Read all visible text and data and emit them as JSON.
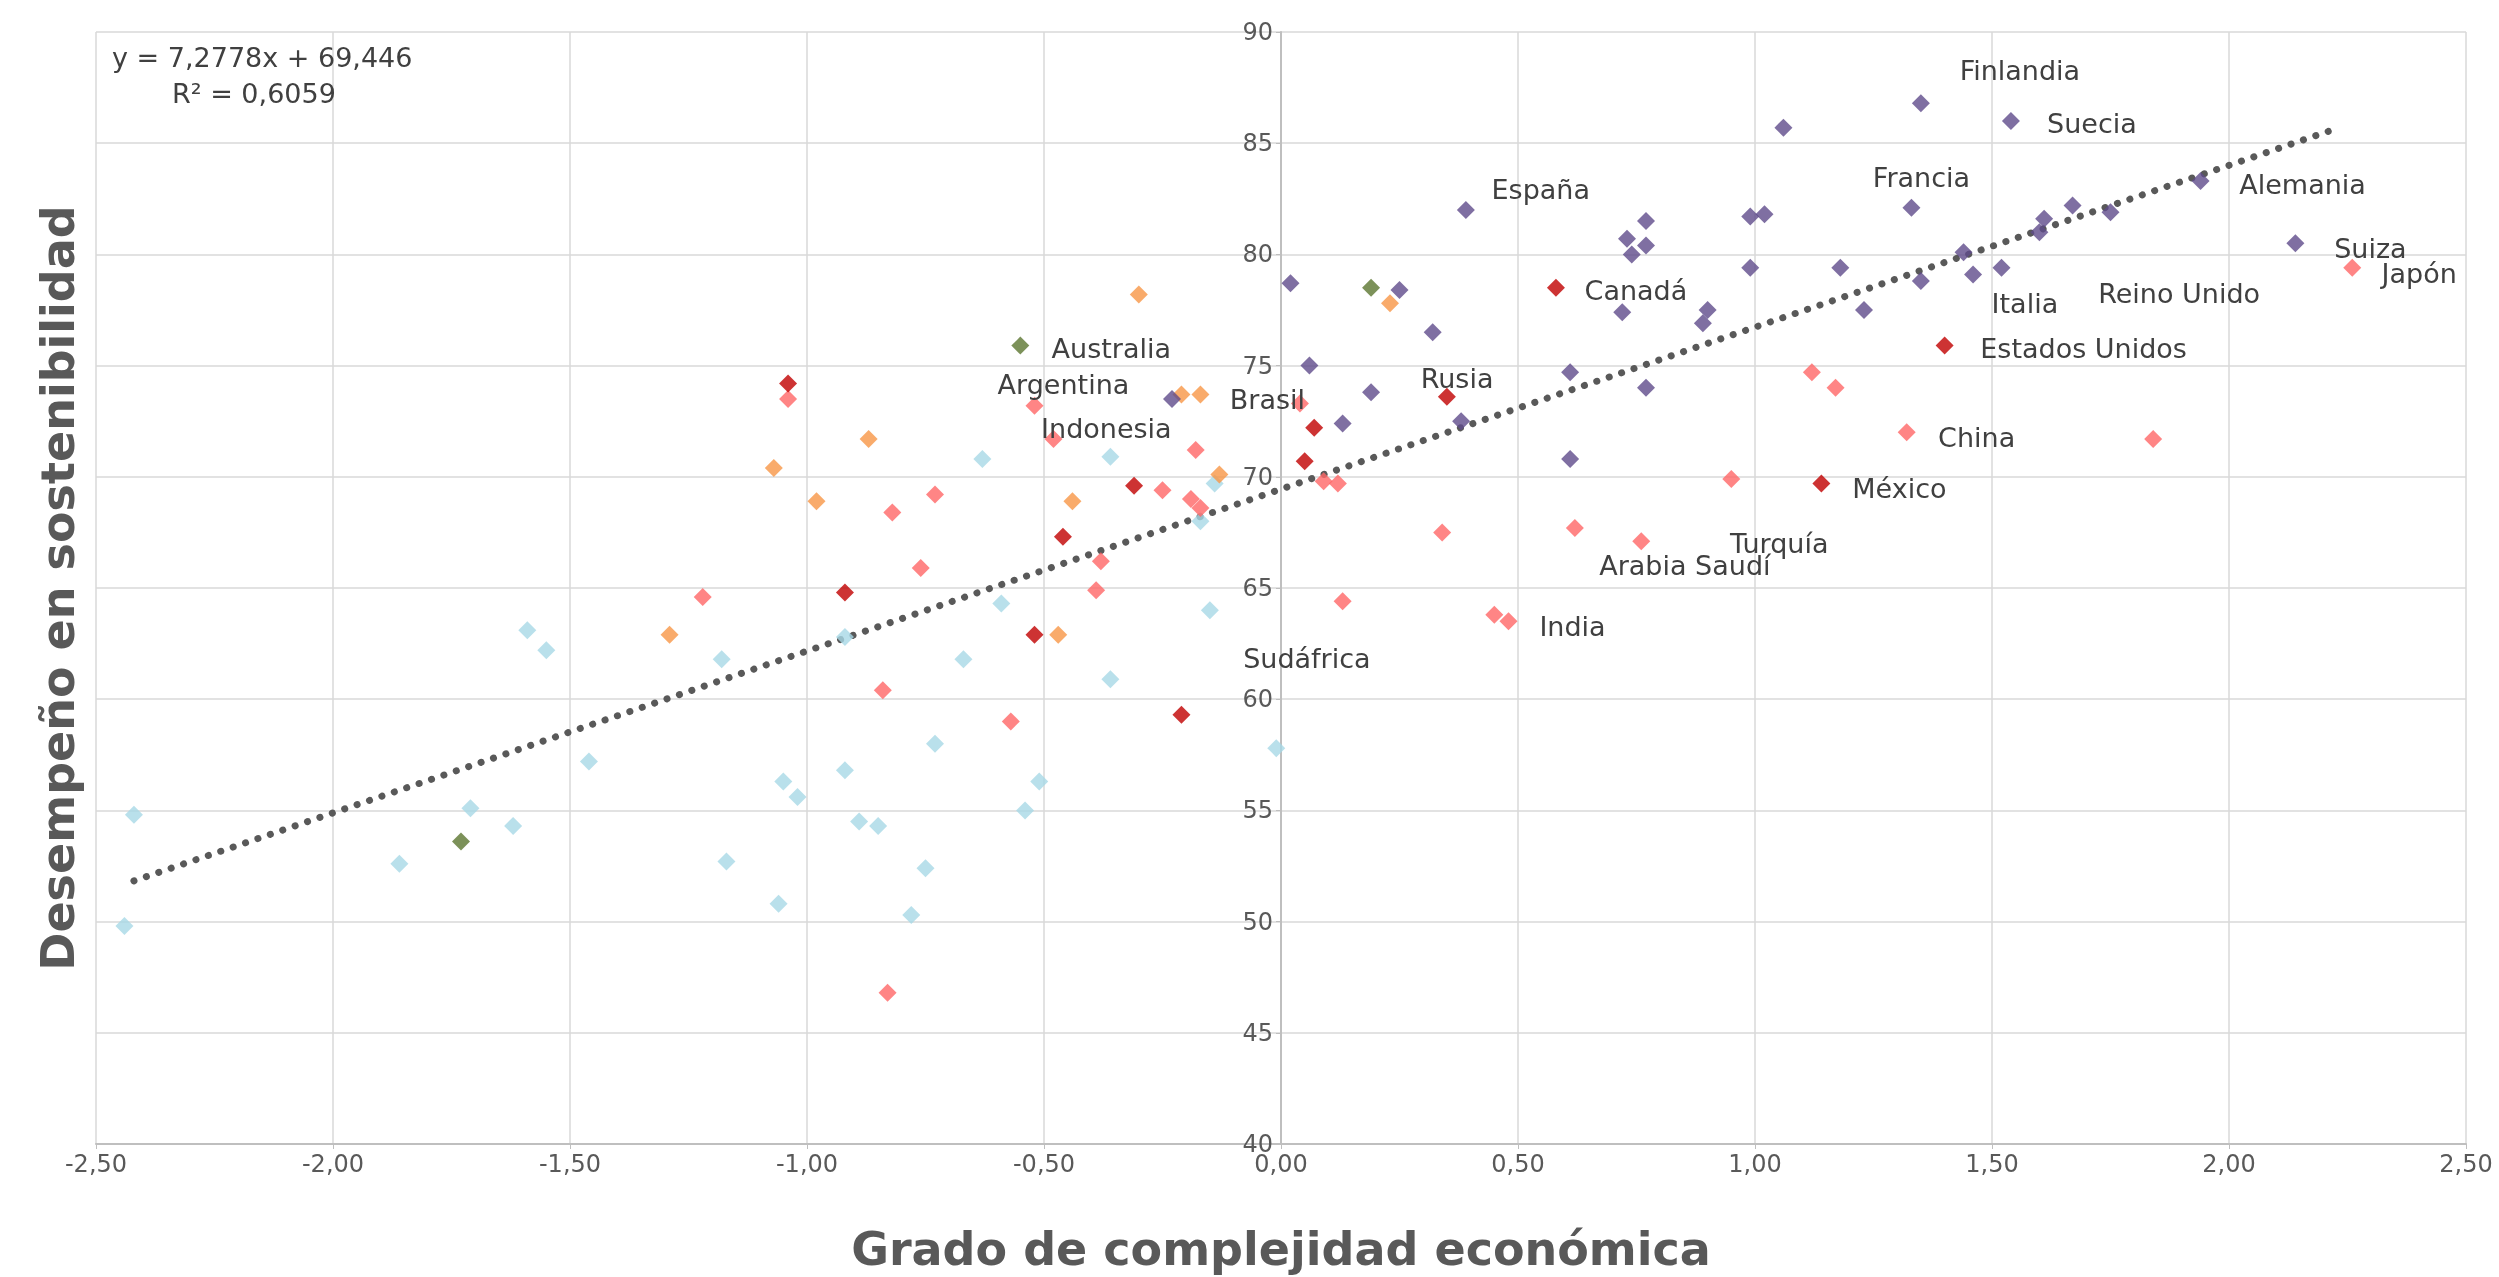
{
  "chart_data": {
    "type": "scatter",
    "xlabel": "Grado de complejidad económica",
    "ylabel": "Desempeño en sostenibilidad",
    "xlim": [
      -2.5,
      2.5
    ],
    "ylim": [
      40,
      90
    ],
    "xticks": [
      {
        "value": -2.5,
        "label": "-2,50"
      },
      {
        "value": -2,
        "label": "-2,00"
      },
      {
        "value": -1.5,
        "label": "-1,50"
      },
      {
        "value": -1,
        "label": "-1,00"
      },
      {
        "value": -0.5,
        "label": "-0,50"
      },
      {
        "value": 0,
        "label": "0,00"
      },
      {
        "value": 0.5,
        "label": "0,50"
      },
      {
        "value": 1,
        "label": "1,00"
      },
      {
        "value": 1.5,
        "label": "1,50"
      },
      {
        "value": 2,
        "label": "2,00"
      },
      {
        "value": 2.5,
        "label": "2,50"
      }
    ],
    "yticks": [
      40,
      45,
      50,
      55,
      60,
      65,
      70,
      75,
      80,
      85,
      90
    ],
    "grid": true,
    "marker": "diamond",
    "series": [
      {
        "color": "#a8d8e6",
        "x": [
          -2.42,
          -2.44,
          -1.86,
          -1.71,
          -1.62,
          -1.59,
          -1.55,
          -1.46,
          -1.18,
          -1.17,
          -1.06,
          -1.05,
          -1.02,
          -0.92,
          -0.92,
          -0.89,
          -0.85,
          -0.78,
          -0.75,
          -0.73,
          -0.67,
          -0.63,
          -0.59,
          -0.54,
          -0.51,
          -0.36,
          -0.36,
          -0.17,
          -0.15,
          -0.14,
          -0.01
        ],
        "values": [
          54.8,
          49.8,
          52.6,
          55.1,
          54.3,
          63.1,
          62.2,
          57.2,
          61.8,
          52.7,
          50.8,
          56.3,
          55.6,
          62.8,
          56.8,
          54.5,
          54.3,
          50.3,
          52.4,
          58.0,
          61.8,
          70.8,
          64.3,
          55.0,
          56.3,
          70.9,
          60.9,
          68.0,
          64.0,
          69.7,
          57.8
        ]
      },
      {
        "color": "#ff6666",
        "x": [
          -0.83,
          -0.84,
          -1.04,
          -1.22,
          -0.82,
          -0.73,
          -0.76,
          -0.57,
          -0.52,
          -0.48,
          -0.39,
          -0.38,
          -0.25,
          -0.19,
          -0.18,
          -0.17,
          0.04,
          0.09,
          0.12,
          0.13,
          0.34,
          0.45,
          0.48,
          0.62,
          0.76,
          0.95,
          1.12,
          1.17,
          1.32,
          1.84,
          2.26
        ],
        "values": [
          46.8,
          60.4,
          73.5,
          64.6,
          68.4,
          69.2,
          65.9,
          59.0,
          73.2,
          71.7,
          64.9,
          66.2,
          69.4,
          69.0,
          71.2,
          68.6,
          73.3,
          69.8,
          69.7,
          64.4,
          67.5,
          63.8,
          63.5,
          67.7,
          67.1,
          69.9,
          74.7,
          74.0,
          72.0,
          71.7,
          79.4
        ]
      },
      {
        "color": "#c00000",
        "x": [
          -1.04,
          -0.92,
          -0.52,
          -0.46,
          -0.31,
          -0.21,
          0.05,
          0.07,
          0.35,
          0.58,
          1.14,
          1.4
        ],
        "values": [
          74.2,
          64.8,
          62.9,
          67.3,
          69.6,
          59.3,
          70.7,
          72.2,
          73.6,
          78.5,
          69.7,
          75.9
        ]
      },
      {
        "color": "#f79646",
        "x": [
          -0.3,
          0.23,
          -1.07,
          -0.98,
          -0.87,
          -1.29,
          -0.47,
          -0.44,
          -0.21,
          -0.17,
          -0.13
        ],
        "values": [
          78.2,
          77.8,
          70.4,
          68.9,
          71.7,
          62.9,
          62.9,
          68.9,
          73.7,
          73.7,
          70.1
        ]
      },
      {
        "color": "#5b7530",
        "x": [
          -0.55,
          0.19,
          -1.73
        ],
        "values": [
          75.9,
          78.5,
          53.6
        ]
      },
      {
        "color": "#5f4b8b",
        "x": [
          0.02,
          0.06,
          -0.23,
          0.13,
          0.19,
          0.25,
          0.32,
          0.38,
          0.39,
          0.61,
          0.61,
          0.72,
          0.73,
          0.74,
          0.77,
          0.77,
          0.77,
          0.89,
          0.9,
          0.99,
          0.99,
          1.02,
          1.06,
          1.18,
          1.23,
          1.33,
          1.35,
          1.35,
          1.44,
          1.46,
          1.52,
          1.54,
          1.6,
          1.61,
          1.67,
          1.75,
          1.94,
          2.14
        ],
        "values": [
          78.7,
          75.0,
          73.5,
          72.4,
          73.8,
          78.4,
          76.5,
          72.5,
          82.0,
          74.7,
          70.8,
          77.4,
          80.7,
          80.0,
          80.4,
          81.5,
          74.0,
          76.9,
          77.5,
          81.7,
          79.4,
          81.8,
          85.7,
          79.4,
          77.5,
          82.1,
          86.8,
          78.8,
          80.1,
          79.1,
          79.4,
          86.0,
          81.0,
          81.6,
          82.2,
          81.9,
          83.3,
          80.5
        ]
      },
      {
        "type": "line",
        "color": "#595959",
        "line_style": "dotted",
        "marker": "none",
        "x": [
          -2.42,
          2.23
        ],
        "values": [
          51.83,
          85.68
        ]
      }
    ],
    "annotations": [
      "y = 7,2778x + 69,446",
      "R² = 0,6059",
      {
        "text": "Finlandia",
        "x": 1.35,
        "y": 86.8
      },
      {
        "text": "Suecia",
        "x": 1.54,
        "y": 86.0
      },
      {
        "text": "Francia",
        "x": 1.33,
        "y": 82.1
      },
      {
        "text": "Alemania",
        "x": 1.94,
        "y": 83.3
      },
      {
        "text": "Suiza",
        "x": 2.14,
        "y": 80.5
      },
      {
        "text": "Japón",
        "x": 2.26,
        "y": 79.4
      },
      {
        "text": "Reino Unido",
        "x": 1.61,
        "y": 81.6
      },
      {
        "text": "Italia",
        "x": 1.35,
        "y": 78.8
      },
      {
        "text": "Estados Unidos",
        "x": 1.4,
        "y": 75.9
      },
      {
        "text": "China",
        "x": 1.32,
        "y": 72.0
      },
      {
        "text": "México",
        "x": 1.14,
        "y": 69.7
      },
      {
        "text": "Turquía",
        "x": 0.95,
        "y": 69.9
      },
      {
        "text": "Arabia Saudí",
        "x": 0.62,
        "y": 67.7
      },
      {
        "text": "India",
        "x": 0.48,
        "y": 63.5
      },
      {
        "text": "Canadá",
        "x": 0.58,
        "y": 78.5
      },
      {
        "text": "España",
        "x": 0.74,
        "y": 80.0
      },
      {
        "text": "Rusia",
        "x": 0.19,
        "y": 73.8
      },
      {
        "text": "Brasil",
        "x": -0.17,
        "y": 73.7
      },
      {
        "text": "Argentina",
        "x": -0.21,
        "y": 73.7
      },
      {
        "text": "Indonesia",
        "x": -0.13,
        "y": 70.1
      },
      {
        "text": "Australia",
        "x": -0.55,
        "y": 75.9
      },
      {
        "text": "Sudáfrica",
        "x": -0.15,
        "y": 64.0
      }
    ]
  }
}
